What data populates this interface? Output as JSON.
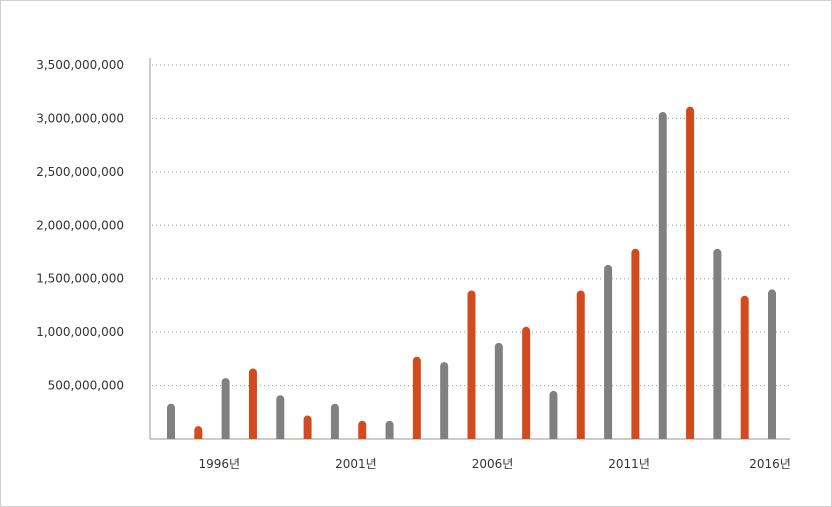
{
  "chart_data": {
    "type": "bar",
    "title": "",
    "xlabel": "",
    "ylabel": "",
    "ylim": [
      0,
      3500000000
    ],
    "yticks": [
      {
        "value": 500000000,
        "label": "500,000,000"
      },
      {
        "value": 1000000000,
        "label": "1,000,000,000"
      },
      {
        "value": 1500000000,
        "label": "1,500,000,000"
      },
      {
        "value": 2000000000,
        "label": "2,000,000,000"
      },
      {
        "value": 2500000000,
        "label": "2,500,000,000"
      },
      {
        "value": 3000000000,
        "label": "3,000,000,000"
      },
      {
        "value": 3500000000,
        "label": "3,500,000,000"
      }
    ],
    "xtick_labels": [
      "1996년",
      "2001년",
      "2006년",
      "2011년",
      "2016년"
    ],
    "grid": "horizontal-dotted",
    "colors": {
      "gray": "#808080",
      "orange": "#d24b1e"
    },
    "bars": [
      {
        "value": 330000000,
        "color": "gray"
      },
      {
        "value": 120000000,
        "color": "orange"
      },
      {
        "value": 570000000,
        "color": "gray"
      },
      {
        "value": 660000000,
        "color": "orange"
      },
      {
        "value": 410000000,
        "color": "gray"
      },
      {
        "value": 220000000,
        "color": "orange"
      },
      {
        "value": 330000000,
        "color": "gray"
      },
      {
        "value": 170000000,
        "color": "orange"
      },
      {
        "value": 170000000,
        "color": "gray"
      },
      {
        "value": 770000000,
        "color": "orange"
      },
      {
        "value": 720000000,
        "color": "gray"
      },
      {
        "value": 1390000000,
        "color": "orange"
      },
      {
        "value": 900000000,
        "color": "gray"
      },
      {
        "value": 1050000000,
        "color": "orange"
      },
      {
        "value": 450000000,
        "color": "gray"
      },
      {
        "value": 1390000000,
        "color": "orange"
      },
      {
        "value": 1630000000,
        "color": "gray"
      },
      {
        "value": 1780000000,
        "color": "orange"
      },
      {
        "value": 3060000000,
        "color": "gray"
      },
      {
        "value": 3110000000,
        "color": "orange"
      },
      {
        "value": 1780000000,
        "color": "gray"
      },
      {
        "value": 1340000000,
        "color": "orange"
      },
      {
        "value": 1400000000,
        "color": "gray"
      }
    ]
  }
}
